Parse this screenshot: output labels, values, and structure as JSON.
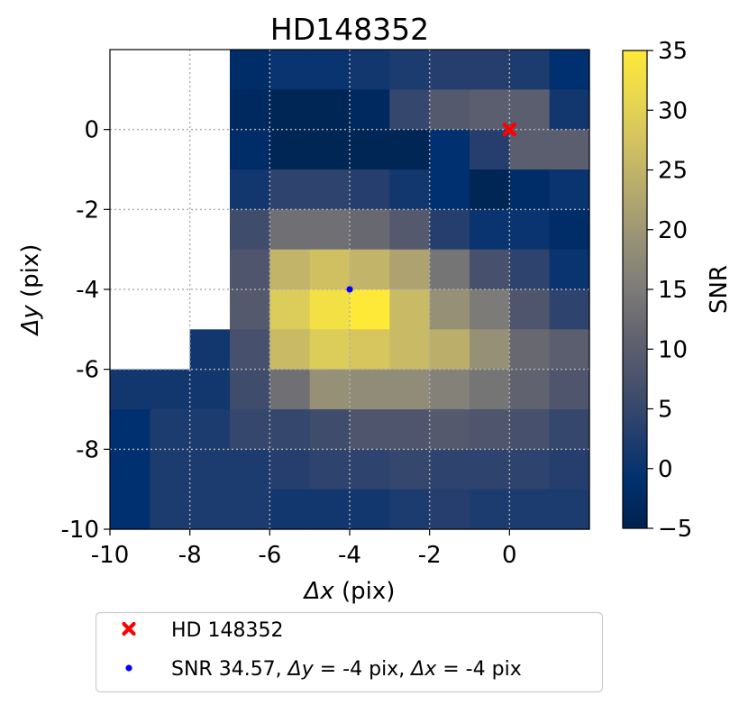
{
  "chart_data": {
    "type": "heatmap",
    "title": "HD148352",
    "xlabel": {
      "symbol": "Δx",
      "unit": "(pix)"
    },
    "ylabel": {
      "symbol": "Δy",
      "unit": "(pix)"
    },
    "xlim": [
      -10,
      2
    ],
    "ylim": [
      -10,
      2
    ],
    "xticks": [
      -10,
      -8,
      -6,
      -4,
      -2,
      0
    ],
    "yticks": [
      -10,
      -8,
      -6,
      -4,
      -2,
      0
    ],
    "grid": true,
    "colormap": "cividis",
    "colorbar": {
      "label": "SNR",
      "range": [
        -5,
        35
      ],
      "ticks": [
        -5,
        0,
        5,
        10,
        15,
        20,
        25,
        30,
        35
      ]
    },
    "grid_x": [
      -10,
      -9,
      -8,
      -7,
      -6,
      -5,
      -4,
      -3,
      -2,
      -1,
      0,
      1
    ],
    "grid_y": [
      2,
      1,
      0,
      -1,
      -2,
      -3,
      -4,
      -5,
      -6,
      -7,
      -8,
      -9
    ],
    "snr_values": [
      [
        null,
        null,
        null,
        -2,
        0,
        0,
        1,
        2,
        3,
        3,
        2,
        -1
      ],
      [
        null,
        null,
        null,
        -3,
        -4,
        -4,
        -3,
        5,
        9,
        10,
        10,
        1
      ],
      [
        null,
        null,
        null,
        -2,
        -4,
        -4,
        -4,
        -4,
        -1,
        3,
        10,
        10
      ],
      [
        null,
        null,
        null,
        1,
        4,
        4,
        3,
        1,
        -1,
        -4,
        -2,
        0
      ],
      [
        null,
        null,
        null,
        6,
        13,
        13,
        12,
        9,
        3,
        0,
        0,
        -2
      ],
      [
        null,
        null,
        null,
        8,
        25,
        27,
        25,
        22,
        14,
        7,
        4,
        0
      ],
      [
        null,
        null,
        null,
        9,
        29,
        33,
        35,
        26,
        19,
        15,
        8,
        4
      ],
      [
        null,
        null,
        1,
        7,
        26,
        29,
        28,
        26,
        24,
        19,
        12,
        10
      ],
      [
        1,
        1,
        1,
        6,
        13,
        19,
        18,
        18,
        16,
        14,
        11,
        8
      ],
      [
        -1,
        2,
        2,
        5,
        5,
        6,
        8,
        8,
        9,
        8,
        7,
        5
      ],
      [
        -1,
        2,
        2,
        2,
        3,
        4,
        4,
        5,
        4,
        4,
        4,
        3
      ],
      [
        -1,
        2,
        2,
        2,
        1,
        1,
        1,
        2,
        3,
        2,
        2,
        2
      ]
    ],
    "markers": [
      {
        "name": "HD 148352",
        "x": 0,
        "y": 0,
        "symbol": "x",
        "color": "#ff0000"
      },
      {
        "name": "SNR 34.57, Δy = -4 pix, Δx = -4 pix",
        "x": -4,
        "y": -4,
        "symbol": "dot",
        "color": "#0000ff"
      }
    ]
  },
  "legend": {
    "item1": "HD 148352",
    "item2": {
      "prefix": "SNR 34.57, ",
      "ysym": "Δy",
      "mid": " = -4 pix, ",
      "xsym": "Δx",
      "suffix": " = -4 pix"
    }
  }
}
